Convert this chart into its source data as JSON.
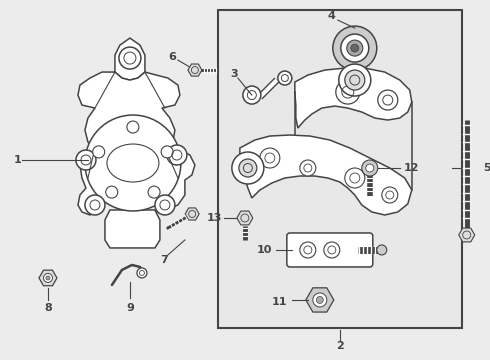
{
  "bg_color": "#ececec",
  "box_bg": "#e8e8e8",
  "white": "#ffffff",
  "lc": "#444444",
  "lc2": "#555555",
  "fig_w": 4.9,
  "fig_h": 3.6,
  "dpi": 100
}
